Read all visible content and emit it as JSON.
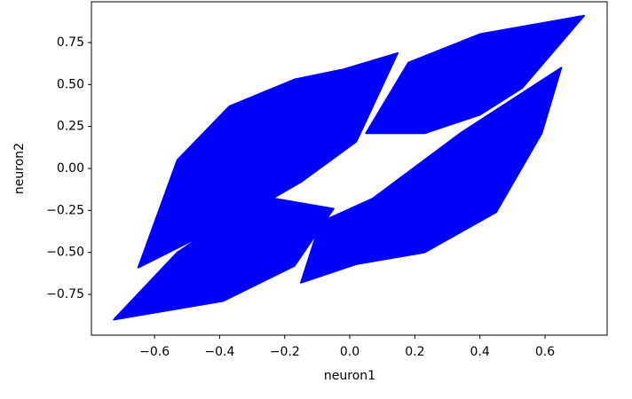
{
  "chart_data": {
    "type": "line",
    "fill": true,
    "xlabel": "neuron1",
    "ylabel": "neuron2",
    "xlim": [
      -0.794,
      0.791
    ],
    "ylim": [
      -0.993,
      0.993
    ],
    "xticks": [
      {
        "value": -0.6,
        "label": "−0.6"
      },
      {
        "value": -0.4,
        "label": "−0.4"
      },
      {
        "value": -0.2,
        "label": "−0.2"
      },
      {
        "value": 0,
        "label": "0.0"
      },
      0.2,
      0.4,
      0.6
    ],
    "yticks": [
      {
        "value": -0.75,
        "label": "−0.75"
      },
      {
        "value": -0.5,
        "label": "−0.50"
      },
      {
        "value": -0.25,
        "label": "−0.25"
      },
      {
        "value": 0,
        "label": "0.00"
      },
      0.25,
      {
        "value": 0.5,
        "label": "0.50"
      },
      0.75
    ],
    "series": [
      {
        "color": "#0000ff",
        "x": [
          -0.65,
          -0.53,
          -0.37,
          -0.17,
          -0.02,
          0.147,
          0.02,
          -0.15,
          -0.31
        ],
        "y": [
          -0.59,
          0.05,
          0.37,
          0.53,
          0.59,
          0.687,
          0.16,
          -0.08,
          -0.26
        ]
      },
      {
        "color": "#0000ff",
        "x": [
          -0.725,
          -0.39,
          -0.17,
          -0.05,
          -0.23,
          -0.39,
          -0.53
        ],
        "y": [
          -0.9,
          -0.79,
          -0.58,
          -0.24,
          -0.18,
          -0.32,
          -0.5
        ]
      },
      {
        "color": "#0000ff",
        "x": [
          0.72,
          0.53,
          0.4,
          0.23,
          0.05,
          0.18,
          0.4
        ],
        "y": [
          0.91,
          0.48,
          0.32,
          0.21,
          0.21,
          0.63,
          0.8
        ]
      },
      {
        "color": "#0000ff",
        "x": [
          0.65,
          0.59,
          0.45,
          0.23,
          0.02,
          -0.15,
          -0.09,
          0.07,
          0.34
        ],
        "y": [
          0.6,
          0.21,
          -0.26,
          -0.5,
          -0.57,
          -0.68,
          -0.32,
          -0.18,
          0.21
        ]
      }
    ]
  }
}
